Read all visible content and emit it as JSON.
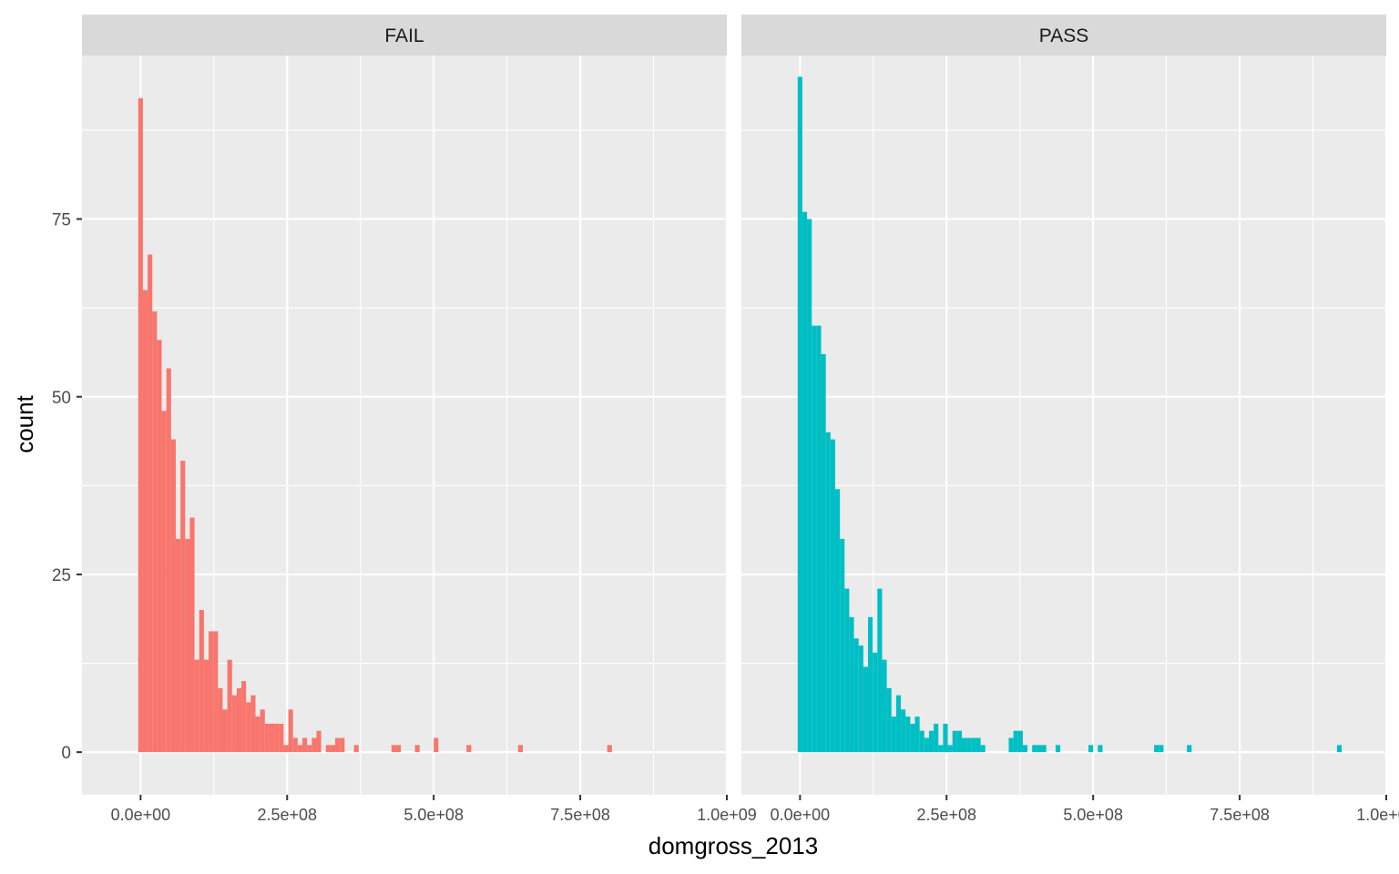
{
  "chart_data": {
    "type": "bar",
    "subtype": "faceted-histogram",
    "xlabel": "domgross_2013",
    "ylabel": "count",
    "xlim": [
      -100000000,
      1000000000
    ],
    "ylim": [
      -6,
      98
    ],
    "x_ticks": [
      0,
      250000000,
      500000000,
      750000000,
      1000000000
    ],
    "x_tick_labels": [
      "0.0e+00",
      "2.5e+08",
      "5.0e+08",
      "7.5e+08",
      "1.0e+09"
    ],
    "y_ticks": [
      0,
      25,
      50,
      75
    ],
    "y_tick_labels": [
      "0",
      "25",
      "50",
      "75"
    ],
    "bin_width": 8000000,
    "first_bin_start": -4000000,
    "grid": true,
    "legend": "none",
    "panel_background": "#EBEBEB",
    "strip_background": "#D9D9D9",
    "facets": [
      {
        "label": "FAIL",
        "color": "#F8766D",
        "counts": [
          92,
          65,
          70,
          62,
          58,
          48,
          54,
          44,
          30,
          41,
          30,
          33,
          13,
          20,
          13,
          17,
          17,
          9,
          6,
          13,
          8,
          9,
          10,
          7,
          8,
          5,
          6,
          4,
          4,
          4,
          4,
          1,
          6,
          2,
          1,
          2,
          1,
          2,
          3,
          0,
          1,
          1,
          1,
          0,
          0,
          0,
          0,
          0,
          0,
          0,
          0,
          0,
          0,
          0,
          0,
          0,
          0,
          0,
          0,
          0,
          0,
          0,
          0,
          0,
          0,
          0,
          0,
          0,
          0,
          0,
          0,
          0,
          0,
          0,
          0,
          0,
          0,
          0,
          0,
          0,
          0,
          0,
          0,
          0,
          0,
          0,
          0,
          0,
          0,
          0,
          0,
          0,
          0,
          0,
          0,
          0,
          0,
          0,
          0,
          0,
          0,
          0,
          0,
          0,
          0,
          0,
          0,
          0,
          0,
          0,
          0,
          0,
          0,
          0,
          0,
          0,
          0,
          0,
          0,
          0
        ],
        "sparse_counts": [
          [
            42,
            2
          ],
          [
            43,
            2
          ],
          [
            46,
            1
          ],
          [
            54,
            1
          ],
          [
            55,
            1
          ],
          [
            59,
            1
          ],
          [
            63,
            2
          ],
          [
            70,
            1
          ],
          [
            81,
            1
          ],
          [
            100,
            1
          ]
        ]
      },
      {
        "label": "PASS",
        "color": "#00BFC4",
        "counts": [
          95,
          76,
          75,
          60,
          60,
          56,
          45,
          44,
          37,
          30,
          23,
          19,
          16,
          15,
          12,
          19,
          14,
          23,
          13,
          9,
          5,
          8,
          6,
          5,
          4,
          5,
          3,
          2,
          3,
          4,
          1,
          4,
          1,
          3,
          3,
          2,
          2,
          2,
          2,
          1,
          0
        ],
        "sparse_counts": [
          [
            45,
            2
          ],
          [
            46,
            3
          ],
          [
            47,
            3
          ],
          [
            48,
            1
          ],
          [
            49,
            0
          ],
          [
            50,
            1
          ],
          [
            51,
            1
          ],
          [
            52,
            1
          ],
          [
            55,
            1
          ],
          [
            62,
            1
          ],
          [
            64,
            1
          ],
          [
            76,
            1
          ],
          [
            77,
            1
          ],
          [
            83,
            1
          ],
          [
            115,
            1
          ]
        ]
      }
    ]
  }
}
